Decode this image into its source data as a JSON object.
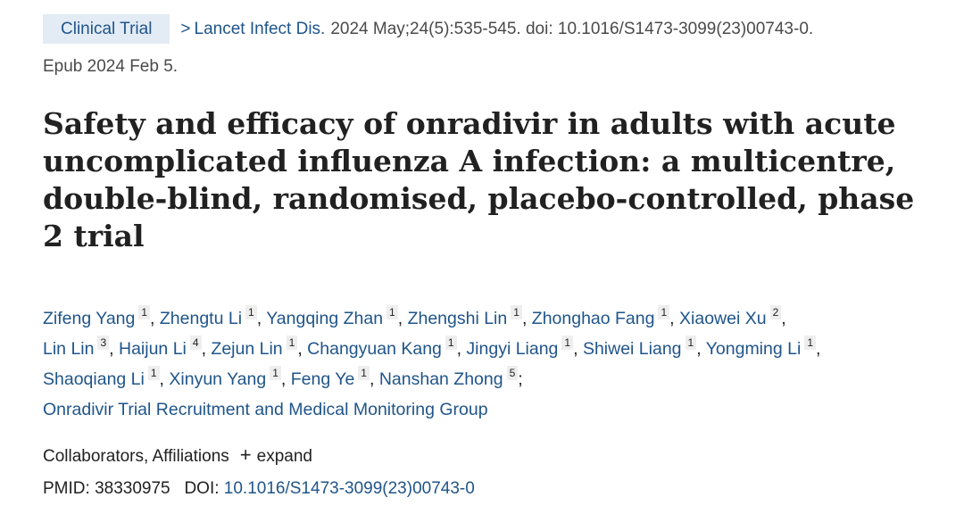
{
  "header": {
    "article_type": "Clinical Trial",
    "journal": "Lancet Infect Dis.",
    "citation": "2024 May;24(5):535-545. doi: 10.1016/S1473-3099(23)00743-0.",
    "epub": "Epub 2024 Feb 5."
  },
  "title": "Safety and efficacy of onradivir in adults with acute uncomplicated influenza A infection: a multicentre, double-blind, randomised, placebo-controlled, phase 2 trial",
  "authors": [
    {
      "name": "Zifeng Yang",
      "aff": "1"
    },
    {
      "name": "Zhengtu Li",
      "aff": "1"
    },
    {
      "name": "Yangqing Zhan",
      "aff": "1"
    },
    {
      "name": "Zhengshi Lin",
      "aff": "1"
    },
    {
      "name": "Zhonghao Fang",
      "aff": "1"
    },
    {
      "name": "Xiaowei Xu",
      "aff": "2"
    },
    {
      "name": "Lin Lin",
      "aff": "3"
    },
    {
      "name": "Haijun Li",
      "aff": "4"
    },
    {
      "name": "Zejun Lin",
      "aff": "1"
    },
    {
      "name": "Changyuan Kang",
      "aff": "1"
    },
    {
      "name": "Jingyi Liang",
      "aff": "1"
    },
    {
      "name": "Shiwei Liang",
      "aff": "1"
    },
    {
      "name": "Yongming Li",
      "aff": "1"
    },
    {
      "name": "Shaoqiang Li",
      "aff": "1"
    },
    {
      "name": "Xinyun Yang",
      "aff": "1"
    },
    {
      "name": "Feng Ye",
      "aff": "1"
    },
    {
      "name": "Nanshan Zhong",
      "aff": "5"
    }
  ],
  "group": "Onradivir Trial Recruitment and Medical Monitoring Group",
  "collab": {
    "label": "Collaborators, Affiliations",
    "expand_icon": "plus-icon",
    "expand_label": "expand"
  },
  "ids": {
    "pmid_label": "PMID:",
    "pmid": "38330975",
    "doi_label": "DOI:",
    "doi": "10.1016/S1473-3099(23)00743-0"
  },
  "colors": {
    "link": "#20558a",
    "badge_bg": "#e3ebf4",
    "text": "#212121",
    "muted": "#4a4a4a"
  }
}
